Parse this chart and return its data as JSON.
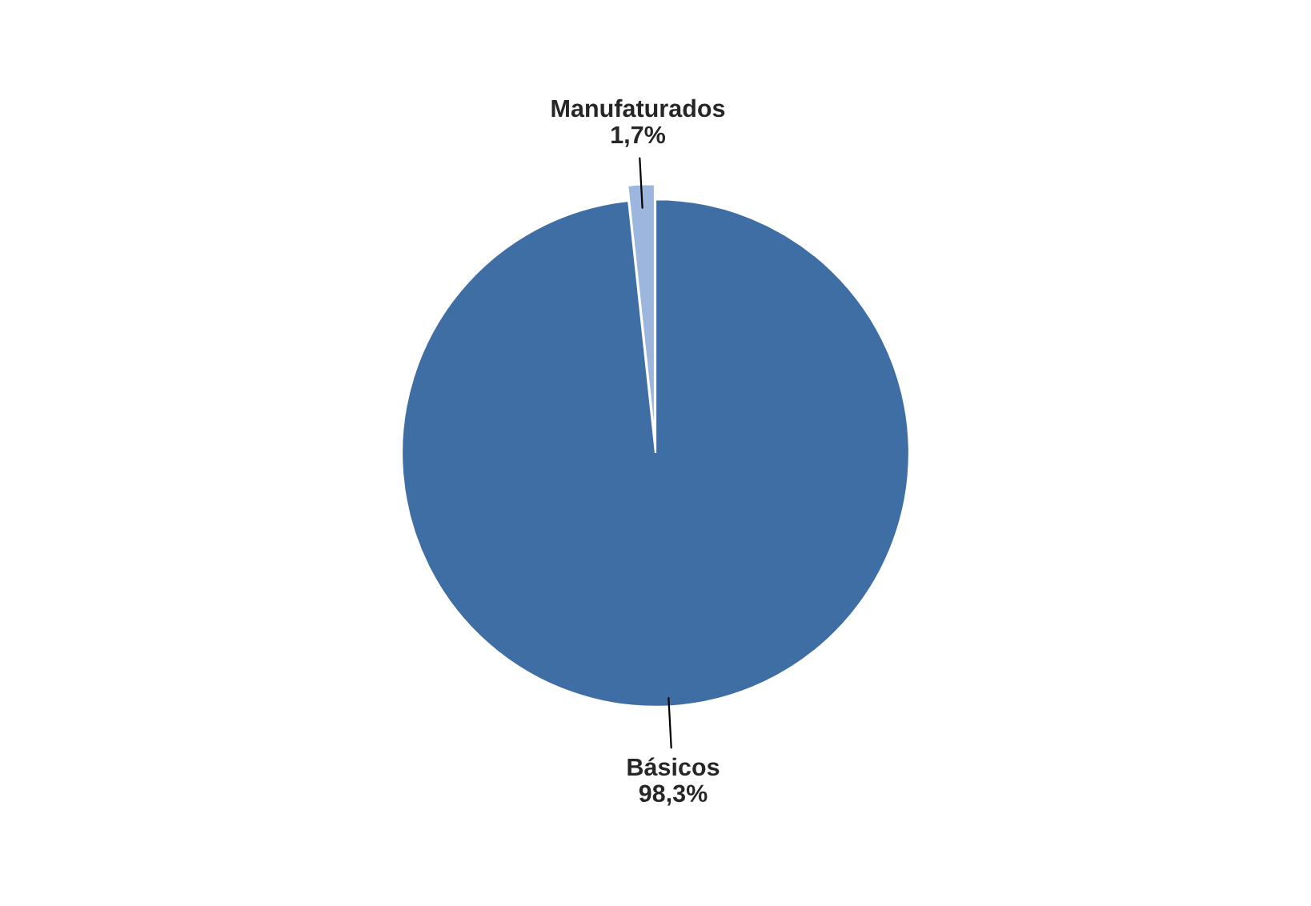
{
  "chart_data": {
    "type": "pie",
    "categories": [
      "Básicos",
      "Manufaturados"
    ],
    "values": [
      98.3,
      1.7
    ],
    "value_labels": [
      "98,3%",
      "1,7%"
    ],
    "colors": [
      "#3f6ea5",
      "#9cb6de"
    ],
    "legend": false
  }
}
